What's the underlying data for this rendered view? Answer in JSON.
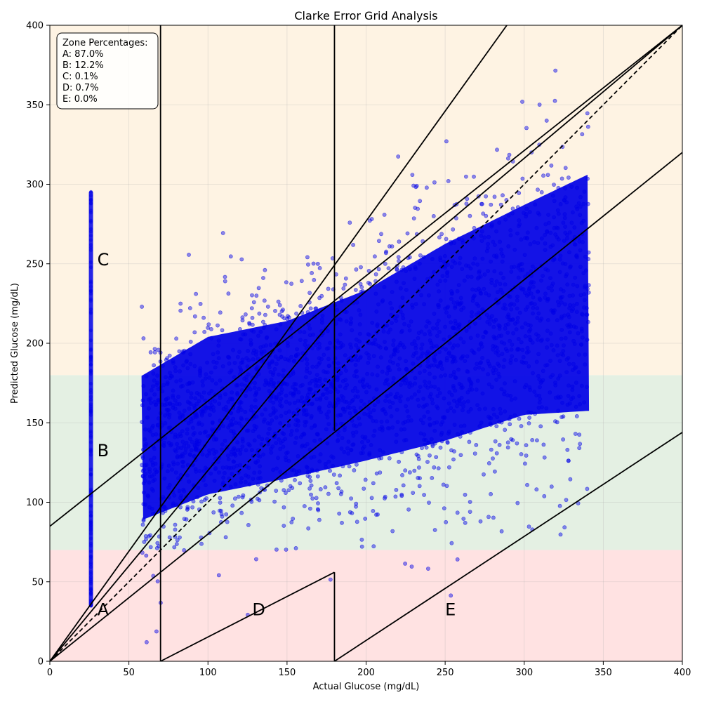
{
  "chart_data": {
    "type": "scatter",
    "title": "Clarke Error Grid Analysis",
    "xlabel": "Actual Glucose (mg/dL)",
    "ylabel": "Predicted Glucose (mg/dL)",
    "xlim": [
      0,
      400
    ],
    "ylim": [
      0,
      400
    ],
    "x_ticks": [
      0,
      50,
      100,
      150,
      200,
      250,
      300,
      350,
      400
    ],
    "y_ticks": [
      0,
      50,
      100,
      150,
      200,
      250,
      300,
      350,
      400
    ],
    "grid": true,
    "background_bands": [
      {
        "y_from": 0,
        "y_to": 70,
        "color": "#ffe2e2"
      },
      {
        "y_from": 70,
        "y_to": 180,
        "color": "#e4f0e3"
      },
      {
        "y_from": 180,
        "y_to": 400,
        "color": "#fef3e3"
      }
    ],
    "zone_lines": [
      {
        "x": [
          0,
          400
        ],
        "y": [
          0,
          400
        ],
        "style": "dashed"
      },
      {
        "x": [
          0,
          70
        ],
        "y": [
          0,
          56
        ],
        "style": "solid"
      },
      {
        "x": [
          70,
          400
        ],
        "y": [
          56,
          320
        ],
        "style": "solid"
      },
      {
        "x": [
          0,
          400
        ],
        "y": [
          84.9,
          400
        ],
        "style": "solid"
      },
      {
        "x": [
          0,
          180
        ],
        "y": [
          0,
          216
        ],
        "style": "solid"
      },
      {
        "x": [
          180,
          400
        ],
        "y": [
          216,
          400
        ],
        "style": "solid"
      },
      {
        "x": [
          0,
          289
        ],
        "y": [
          0,
          400
        ],
        "style": "solid"
      },
      {
        "x": [
          70,
          70
        ],
        "y": [
          0,
          400
        ],
        "style": "solid"
      },
      {
        "x": [
          180,
          180
        ],
        "y": [
          0,
          56
        ],
        "style": "solid"
      },
      {
        "x": [
          180,
          180
        ],
        "y": [
          145,
          400
        ],
        "style": "solid"
      },
      {
        "x": [
          70,
          180
        ],
        "y": [
          0,
          56
        ],
        "style": "solid"
      },
      {
        "x": [
          180,
          400
        ],
        "y": [
          0,
          144
        ],
        "style": "solid"
      }
    ],
    "zone_labels": [
      {
        "text": "A",
        "x": 30,
        "y": 33
      },
      {
        "text": "B",
        "x": 30,
        "y": 133
      },
      {
        "text": "C",
        "x": 30,
        "y": 253
      },
      {
        "text": "D",
        "x": 128,
        "y": 33
      },
      {
        "text": "E",
        "x": 250,
        "y": 33
      }
    ],
    "zone_percentages": {
      "title": "Zone Percentages:",
      "items": [
        "A: 87.0%",
        "B: 12.2%",
        "C: 0.1%",
        "D: 0.7%",
        "E: 0.0%"
      ]
    },
    "series": [
      {
        "color": "#0000e6",
        "points_summary": {
          "vertical_strip": {
            "x": 26,
            "y_range": [
              34,
              296
            ]
          },
          "main_cloud": {
            "x_range": [
              58,
              341
            ],
            "y_center": [
              [
                58,
                130
              ],
              [
                100,
                150
              ],
              [
                150,
                160
              ],
              [
                200,
                175
              ],
              [
                250,
                195
              ],
              [
                300,
                215
              ],
              [
                340,
                225
              ]
            ],
            "y_spread": [
              [
                58,
                55
              ],
              [
                100,
                60
              ],
              [
                150,
                60
              ],
              [
                200,
                65
              ],
              [
                250,
                75
              ],
              [
                300,
                80
              ],
              [
                340,
                90
              ]
            ]
          },
          "dense_band": {
            "y_range": [
              70,
              180
            ]
          }
        }
      }
    ]
  }
}
